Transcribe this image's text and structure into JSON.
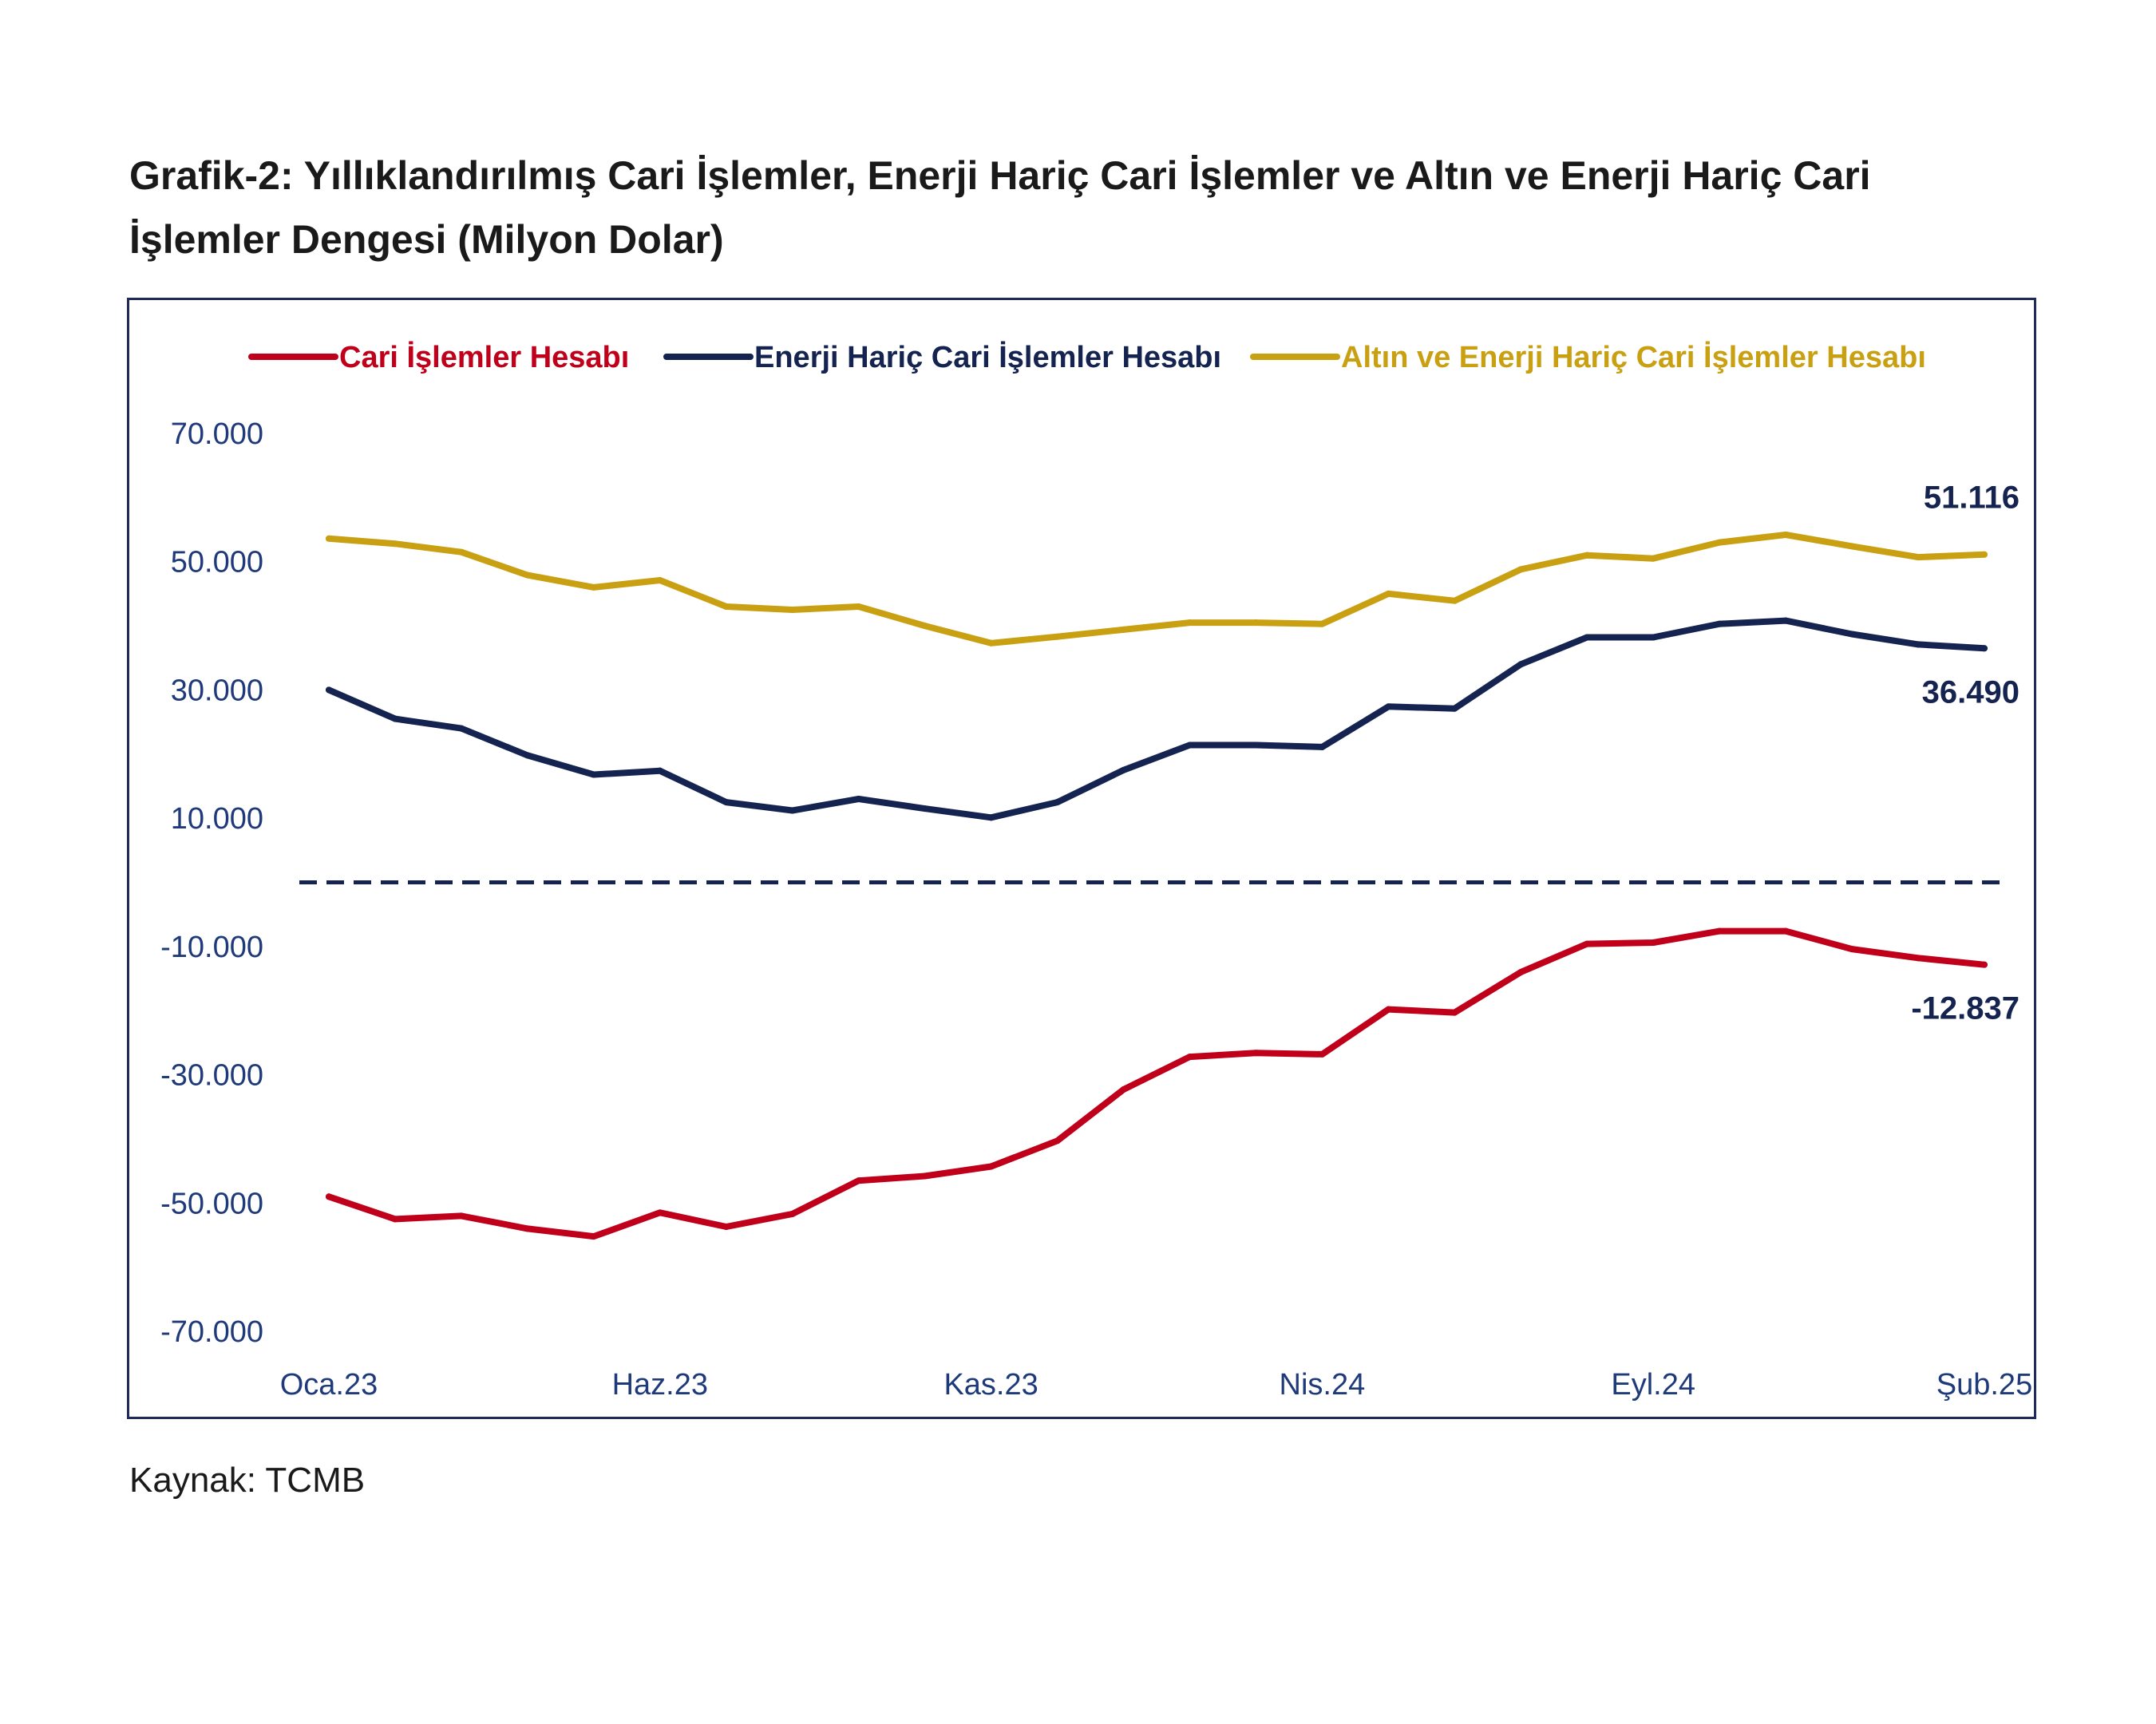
{
  "title_line1": "Grafik-2: Yıllıklandırılmış Cari İşlemler, Enerji Hariç Cari İşlemler ve Altın ve Enerji Hariç Cari",
  "title_line2": "İşlemler Dengesi (Milyon Dolar)",
  "source": "Kaynak: TCMB",
  "chart_data": {
    "type": "line",
    "x": [
      "Oca.23",
      "Şub.23",
      "Mar.23",
      "Nis.23",
      "May.23",
      "Haz.23",
      "Tem.23",
      "Ağu.23",
      "Eyl.23",
      "Eki.23",
      "Kas.23",
      "Ara.23",
      "Oca.24",
      "Şub.24",
      "Mar.24",
      "Nis.24",
      "May.24",
      "Haz.24",
      "Tem.24",
      "Ağu.24",
      "Eyl.24",
      "Eki.24",
      "Kas.24",
      "Ara.24",
      "Oca.25",
      "Şub.25"
    ],
    "x_tick_labels": [
      "Oca.23",
      "Haz.23",
      "Kas.23",
      "Nis.24",
      "Eyl.24",
      "Şub.25"
    ],
    "y_tick_labels": [
      "70.000",
      "50.000",
      "30.000",
      "10.000",
      "-10.000",
      "-30.000",
      "-50.000",
      "-70.000"
    ],
    "ylim": [
      -70000,
      70000
    ],
    "zero_line": "dashed",
    "legend_position": "top",
    "grid": false,
    "series": [
      {
        "name": "Cari İşlemler Hesabı",
        "color": "#c0001a",
        "values": [
          -49000,
          -52500,
          -52000,
          -54000,
          -55200,
          -51500,
          -53700,
          -51700,
          -46500,
          -45800,
          -44300,
          -40300,
          -32300,
          -27200,
          -26600,
          -26800,
          -19800,
          -20300,
          -14000,
          -9600,
          -9400,
          -7600,
          -7600,
          -10400,
          -11800,
          -12837
        ],
        "end_label": "-12.837"
      },
      {
        "name": "Enerji Hariç Cari İşlemler Hesabı",
        "color": "#14234f",
        "values": [
          30000,
          25500,
          24000,
          19800,
          16800,
          17400,
          12500,
          11200,
          13000,
          11500,
          10100,
          12500,
          17500,
          21400,
          21400,
          21100,
          27400,
          27100,
          34000,
          38200,
          38200,
          40300,
          40800,
          38700,
          37100,
          36490
        ],
        "end_label": "36.490"
      },
      {
        "name": "Altın ve Enerji Hariç Cari İşlemler Hesabı",
        "color": "#c9a012",
        "values": [
          53600,
          52800,
          51500,
          47900,
          46000,
          47100,
          43000,
          42500,
          43000,
          40000,
          37300,
          38300,
          39400,
          40500,
          40500,
          40300,
          45000,
          43900,
          48800,
          51000,
          50500,
          53000,
          54200,
          52400,
          50700,
          51116
        ],
        "end_label": "51.116"
      }
    ]
  }
}
